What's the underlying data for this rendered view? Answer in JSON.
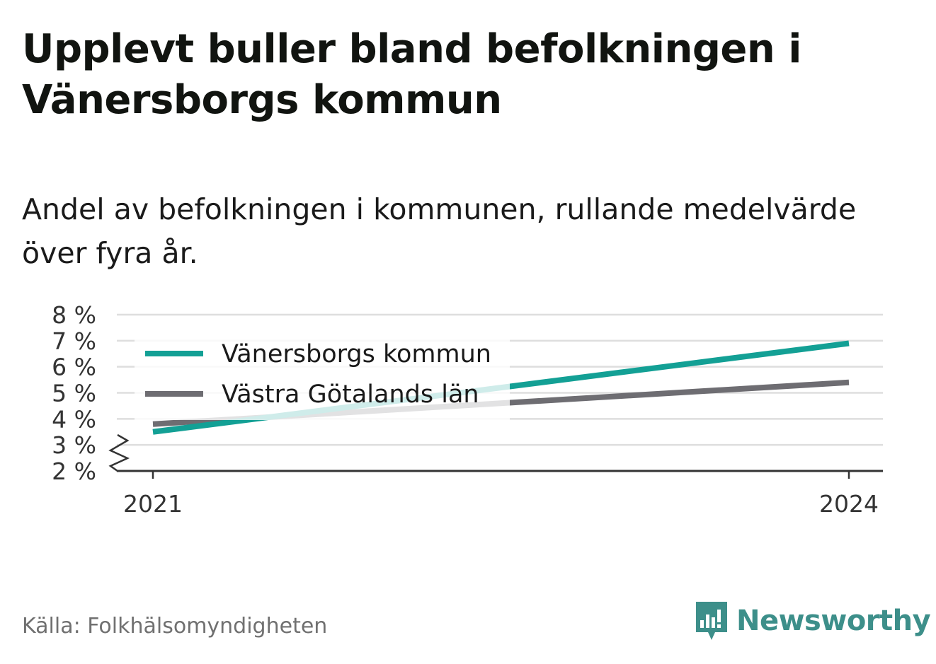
{
  "title": "Upplevt buller bland befolkningen i Vänersborgs kommun",
  "subtitle": "Andel av befolkningen i kommunen, rullande medelvärde över fyra år.",
  "source": "Källa: Folkhälsomyndigheten",
  "brand": {
    "name": "Newsworthy",
    "icon": "newsworthy-logo-icon",
    "color": "#3d8f8a"
  },
  "chart_data": {
    "type": "line",
    "x": [
      "2021",
      "2024"
    ],
    "x_ticks": [
      "2021",
      "2024"
    ],
    "y_ticks": [
      "2 %",
      "3 %",
      "4 %",
      "5 %",
      "6 %",
      "7 %",
      "8 %"
    ],
    "ylim": [
      2,
      8
    ],
    "y_axis_break": true,
    "grid": true,
    "legend_position": "top-left",
    "series": [
      {
        "name": "Vänersborgs kommun",
        "values": [
          3.5,
          6.9
        ],
        "color": "#13a095"
      },
      {
        "name": "Västra Götalands län",
        "values": [
          3.8,
          5.4
        ],
        "color": "#6e6d72"
      }
    ]
  }
}
